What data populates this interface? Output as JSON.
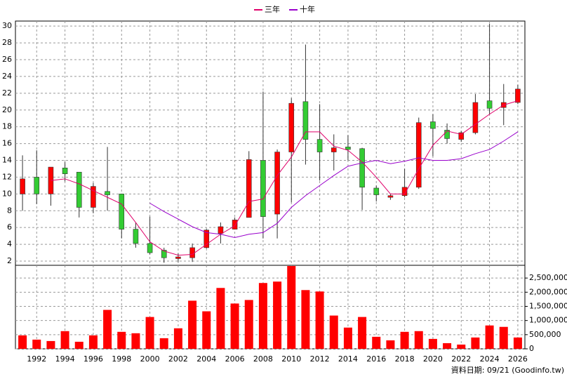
{
  "chart_data": {
    "type": "candlestick",
    "x": [
      1991,
      1992,
      1993,
      1994,
      1995,
      1996,
      1997,
      1998,
      1999,
      2000,
      2001,
      2002,
      2003,
      2004,
      2005,
      2006,
      2007,
      2008,
      2009,
      2010,
      2011,
      2012,
      2013,
      2014,
      2015,
      2016,
      2017,
      2018,
      2019,
      2020,
      2021,
      2022,
      2023,
      2024,
      2025,
      2026
    ],
    "open": [
      10,
      12,
      10,
      13.1,
      12.6,
      8.4,
      10.3,
      10,
      5.8,
      4.1,
      3.3,
      2.3,
      2.4,
      3.6,
      5.3,
      5.8,
      7.2,
      14,
      7.6,
      15,
      21,
      16.5,
      15,
      15.6,
      15.4,
      10.7,
      9.6,
      9.8,
      10.8,
      18.6,
      17.6,
      16.5,
      17.3,
      21.1,
      20.3,
      20.9
    ],
    "close": [
      11.8,
      10,
      13.2,
      12.4,
      8.4,
      10.9,
      9.9,
      5.8,
      4.1,
      3,
      2.4,
      2.5,
      3.6,
      5.7,
      6.1,
      6.9,
      14.1,
      7.3,
      15,
      20.8,
      16.5,
      15,
      15.5,
      15.3,
      10.8,
      9.9,
      9.8,
      10.8,
      18.5,
      17.8,
      16.6,
      17.3,
      20.9,
      20.2,
      20.9,
      22.5
    ],
    "high": [
      14.6,
      15.2,
      13.2,
      13.8,
      12.6,
      11.3,
      15.6,
      10,
      6.6,
      7.3,
      3.6,
      2.9,
      4.1,
      5.8,
      6.6,
      7.2,
      15.1,
      22.2,
      15.3,
      21.4,
      27.8,
      20.7,
      17.1,
      17,
      15.5,
      11,
      10,
      13,
      19.1,
      19.5,
      18.4,
      17.5,
      21.9,
      30.3,
      23.1,
      23
    ],
    "low": [
      8,
      8.8,
      8.6,
      11.5,
      7.2,
      7.7,
      8,
      4.7,
      3.6,
      2.8,
      1.8,
      1.9,
      1.9,
      3.5,
      4.1,
      5.8,
      7.2,
      4.7,
      4.7,
      9,
      13.5,
      11.6,
      12.8,
      14,
      8.1,
      9.1,
      9.3,
      9.6,
      10.6,
      14.5,
      16,
      16.2,
      17.1,
      19.5,
      18.2,
      20.7
    ],
    "up_color": "#ff0000",
    "down_color": "#33cc33",
    "series": [
      {
        "name": "三年",
        "color": "#e0006a",
        "values": [
          null,
          null,
          11.6,
          11.8,
          11.2,
          10.4,
          9.6,
          8.8,
          6.6,
          4.3,
          3.2,
          2.7,
          2.8,
          4.0,
          5.2,
          6.2,
          9.1,
          9.4,
          12.2,
          14.4,
          17.4,
          17.4,
          15.7,
          15.2,
          13.8,
          12.0,
          10.0,
          10.0,
          13.0,
          15.8,
          17.5,
          17.1,
          18.3,
          19.5,
          20.6,
          21.1
        ]
      },
      {
        "name": "十年",
        "color": "#9900cc",
        "values": [
          null,
          null,
          null,
          null,
          null,
          null,
          null,
          null,
          null,
          8.9,
          7.9,
          7.0,
          6.1,
          5.4,
          5.2,
          4.8,
          5.2,
          5.4,
          6.5,
          8.4,
          9.8,
          11.0,
          12.2,
          13.3,
          13.7,
          14.0,
          13.6,
          13.9,
          14.3,
          14.0,
          14.0,
          14.2,
          14.8,
          15.3,
          16.3,
          17.4
        ]
      }
    ],
    "xlim": [
      1990.5,
      2026.5
    ],
    "xticks": [
      1992,
      1994,
      1996,
      1998,
      2000,
      2002,
      2004,
      2006,
      2008,
      2010,
      2012,
      2014,
      2016,
      2018,
      2020,
      2022,
      2024,
      2026
    ],
    "ylim": [
      1.5,
      30.6
    ],
    "yticks": [
      2,
      4,
      6,
      8,
      10,
      12,
      14,
      16,
      18,
      20,
      22,
      24,
      26,
      28,
      30
    ],
    "volume": {
      "color": "#ff0000",
      "values": [
        475000,
        325000,
        275000,
        625000,
        250000,
        475000,
        1375000,
        600000,
        550000,
        1125000,
        375000,
        725000,
        1700000,
        1325000,
        2150000,
        1600000,
        1725000,
        2325000,
        2375000,
        2925000,
        2075000,
        2025000,
        1175000,
        750000,
        1125000,
        425000,
        300000,
        600000,
        625000,
        350000,
        200000,
        150000,
        400000,
        825000,
        775000,
        400000
      ],
      "ylim": [
        0,
        2950000
      ],
      "yticks": [
        0,
        {
          "value": 500000,
          "label": "500,000"
        },
        {
          "value": 1000000,
          "label": "1,000,000"
        },
        {
          "value": 1500000,
          "label": "1,500,000"
        },
        {
          "value": 2000000,
          "label": "2,000,000"
        },
        {
          "value": 2500000,
          "label": "2,500,000"
        }
      ]
    },
    "grid": true,
    "footnote": "資料日期: 09/21  (Goodinfo.tw)"
  }
}
